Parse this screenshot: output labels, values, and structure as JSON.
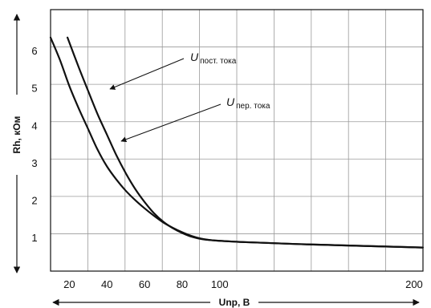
{
  "chart_data": {
    "type": "line",
    "title": "",
    "xlabel": "Unp, В",
    "ylabel": "Rh, кОм",
    "x_ticks": [
      "20",
      "40",
      "60",
      "80",
      "100",
      "200"
    ],
    "y_ticks": [
      "1",
      "2",
      "3",
      "4",
      "5",
      "6"
    ],
    "grid": true,
    "legend": "none",
    "series": [
      {
        "name": "U пост. тока",
        "annotation_main": "U",
        "annotation_sub": "пост. тока",
        "color": "#111111",
        "x": [
          19,
          25,
          30,
          35,
          40,
          45,
          50,
          55,
          60,
          65,
          70,
          75,
          80,
          85,
          90,
          95,
          100,
          110,
          120,
          140,
          160,
          180,
          200
        ],
        "y": [
          6.35,
          5.55,
          4.92,
          4.3,
          3.75,
          3.2,
          2.72,
          2.3,
          1.95,
          1.65,
          1.42,
          1.25,
          1.12,
          1.02,
          0.96,
          0.93,
          0.91,
          0.88,
          0.86,
          0.82,
          0.79,
          0.76,
          0.73
        ]
      },
      {
        "name": "U пер. тока",
        "annotation_main": "U",
        "annotation_sub": "пер. тока",
        "color": "#111111",
        "x": [
          10,
          15,
          20,
          25,
          30,
          35,
          40,
          45,
          50,
          55,
          60,
          65,
          70,
          75,
          80,
          85,
          90,
          95,
          100,
          110,
          120,
          140,
          160,
          180,
          200
        ],
        "y": [
          6.35,
          5.75,
          5.05,
          4.45,
          3.9,
          3.35,
          2.9,
          2.55,
          2.25,
          2.0,
          1.78,
          1.58,
          1.4,
          1.26,
          1.14,
          1.04,
          0.97,
          0.93,
          0.91,
          0.88,
          0.86,
          0.82,
          0.79,
          0.76,
          0.73
        ]
      }
    ]
  }
}
